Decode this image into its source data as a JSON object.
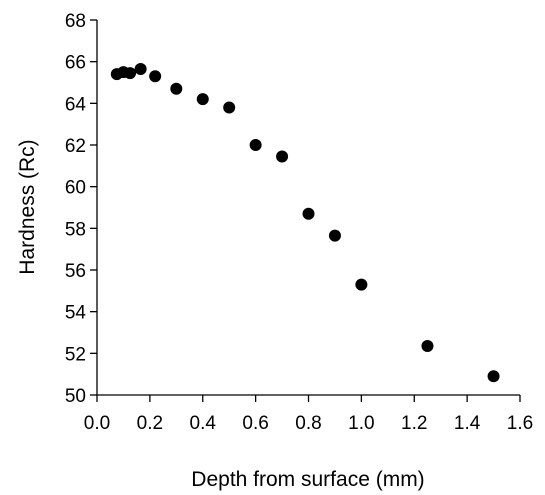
{
  "chart_data": {
    "type": "scatter",
    "title": "",
    "xlabel": "Depth from surface (mm)",
    "ylabel": "Hardness (Rc)",
    "xlim": [
      0.0,
      1.6
    ],
    "ylim": [
      50,
      68
    ],
    "xticks": [
      "0.0",
      "0.2",
      "0.4",
      "0.6",
      "0.8",
      "1.0",
      "1.2",
      "1.4",
      "1.6"
    ],
    "yticks": [
      "50",
      "52",
      "54",
      "56",
      "58",
      "60",
      "62",
      "64",
      "66",
      "68"
    ],
    "grid": false,
    "legend": "none",
    "marker_color": "#000000",
    "series": [
      {
        "x": [
          0.075,
          0.1,
          0.125,
          0.165,
          0.22,
          0.3,
          0.4,
          0.5,
          0.6,
          0.7,
          0.8,
          0.9,
          1.0,
          1.25,
          1.5
        ],
        "y": [
          65.4,
          65.5,
          65.45,
          65.65,
          65.3,
          64.7,
          64.2,
          63.8,
          62.0,
          61.45,
          58.7,
          57.65,
          55.3,
          52.35,
          50.9
        ]
      }
    ]
  }
}
